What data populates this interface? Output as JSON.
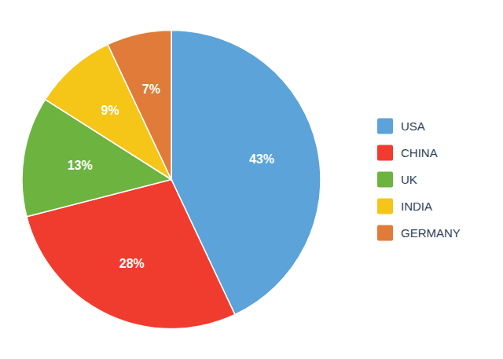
{
  "chart_data": {
    "type": "pie",
    "categories": [
      "USA",
      "CHINA",
      "UK",
      "INDIA",
      "GERMANY"
    ],
    "values": [
      43,
      28,
      13,
      9,
      7
    ],
    "value_labels": [
      "43%",
      "28%",
      "13%",
      "9%",
      "7%"
    ],
    "colors": [
      "#5BA3D9",
      "#F03C2E",
      "#6DB33F",
      "#F5C518",
      "#E07B39"
    ],
    "data_labels": true,
    "legend": "right"
  }
}
